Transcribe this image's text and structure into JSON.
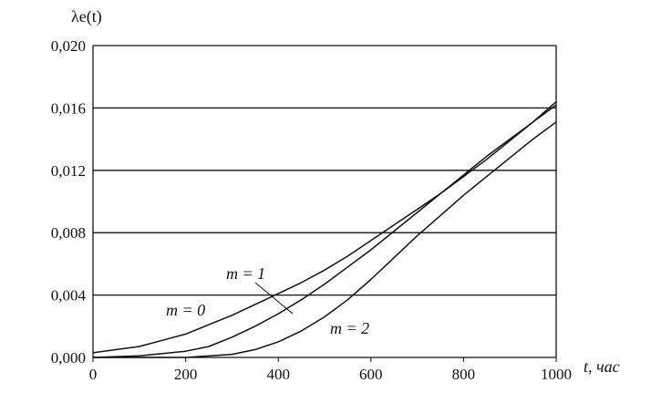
{
  "chart_data": {
    "type": "line",
    "ylabel": "λe(t)",
    "xlabel": "t, час",
    "xlim": [
      0,
      1000
    ],
    "ylim": [
      0,
      0.02
    ],
    "x_ticks": [
      0,
      200,
      400,
      600,
      800,
      1000
    ],
    "x_tick_labels": [
      "0",
      "200",
      "400",
      "600",
      "800",
      "1000"
    ],
    "y_ticks": [
      0,
      0.004,
      0.008,
      0.012,
      0.016,
      0.02
    ],
    "y_tick_labels": [
      "0,000",
      "0,004",
      "0,008",
      "0,012",
      "0,016",
      "0,020"
    ],
    "grid": "horizontal",
    "legend": "none",
    "series": [
      {
        "name": "m = 0",
        "x": [
          0,
          50,
          100,
          150,
          200,
          250,
          300,
          350,
          400,
          450,
          500,
          550,
          600,
          650,
          700,
          750,
          800,
          850,
          900,
          950,
          1000
        ],
        "y": [
          0.0003,
          0.0005,
          0.0007,
          0.0011,
          0.0015,
          0.0021,
          0.0027,
          0.0034,
          0.0041,
          0.0048,
          0.0056,
          0.0065,
          0.0075,
          0.0085,
          0.0095,
          0.0105,
          0.0116,
          0.0127,
          0.0139,
          0.0151,
          0.0164
        ]
      },
      {
        "name": "m = 1",
        "x": [
          0,
          100,
          200,
          250,
          300,
          350,
          400,
          450,
          500,
          550,
          600,
          650,
          700,
          750,
          800,
          850,
          900,
          950,
          1000
        ],
        "y": [
          0.0,
          0.0001,
          0.0004,
          0.0007,
          0.0013,
          0.002,
          0.0028,
          0.0037,
          0.0047,
          0.0058,
          0.0069,
          0.0081,
          0.0093,
          0.0105,
          0.0117,
          0.0129,
          0.014,
          0.0151,
          0.0162
        ]
      },
      {
        "name": "m = 2",
        "x": [
          0,
          200,
          300,
          350,
          400,
          450,
          500,
          550,
          600,
          650,
          700,
          750,
          800,
          850,
          900,
          950,
          1000
        ],
        "y": [
          0.0,
          0.0,
          0.0002,
          0.0005,
          0.001,
          0.0017,
          0.0026,
          0.0037,
          0.005,
          0.0064,
          0.0078,
          0.0091,
          0.0104,
          0.0116,
          0.0128,
          0.014,
          0.0151
        ]
      }
    ],
    "annotations": [
      {
        "text": "m = 0",
        "target": "m = 0"
      },
      {
        "text": "m = 1",
        "target": "m = 1"
      },
      {
        "text": "m = 2",
        "target": "m = 2"
      }
    ]
  }
}
